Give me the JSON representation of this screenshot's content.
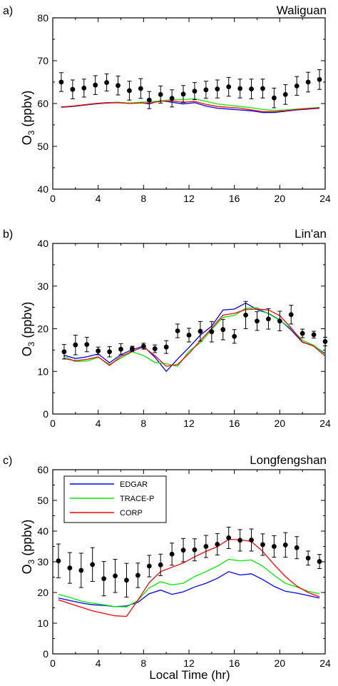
{
  "figure": {
    "xlabel": "Local Time (hr)",
    "legend_entries": [
      {
        "name": "EDGAR",
        "color": "#0000ff"
      },
      {
        "name": "TRACE-P",
        "color": "#00ee00"
      },
      {
        "name": "CORP",
        "color": "#ff0000"
      }
    ]
  },
  "chart_data": [
    {
      "type": "line",
      "panel_label": "a)",
      "title": "Waliguan",
      "ylabel": "O3 (ppbv)",
      "xlim": [
        0,
        24
      ],
      "ylim": [
        40,
        80
      ],
      "xticks": [
        0,
        4,
        8,
        12,
        16,
        20,
        24
      ],
      "yticks": [
        40,
        50,
        60,
        70,
        80
      ],
      "legend": "none",
      "observations": {
        "x": [
          0.75,
          1.75,
          2.75,
          3.75,
          4.75,
          5.75,
          6.75,
          7.75,
          8.5,
          9.5,
          10.5,
          11.5,
          12.5,
          13.5,
          14.5,
          15.5,
          16.5,
          17.5,
          18.5,
          19.5,
          20.5,
          21.5,
          22.5,
          23.5
        ],
        "y": [
          65.0,
          63.3,
          63.6,
          64.3,
          64.9,
          64.2,
          63.0,
          63.5,
          60.8,
          62.1,
          61.2,
          62.2,
          62.9,
          63.2,
          63.4,
          63.9,
          63.5,
          63.4,
          63.5,
          61.3,
          62.1,
          64.1,
          65.0,
          65.6
        ],
        "err": [
          2.2,
          2.2,
          2.1,
          2.2,
          2.0,
          2.2,
          2.2,
          2.3,
          2.0,
          2.0,
          2.0,
          2.0,
          2.0,
          2.0,
          2.1,
          2.2,
          2.2,
          2.3,
          2.2,
          2.3,
          2.3,
          2.2,
          2.3,
          2.3
        ]
      },
      "series": [
        {
          "name": "EDGAR",
          "color": "#0000ff",
          "x": [
            0.75,
            1.75,
            2.75,
            3.75,
            4.75,
            5.75,
            6.75,
            7.75,
            8.5,
            9.5,
            10.5,
            11.5,
            12.5,
            13.5,
            14.5,
            15.5,
            16.5,
            17.5,
            18.5,
            19.5,
            20.5,
            21.5,
            22.5,
            23.5
          ],
          "y": [
            59.1,
            59.3,
            59.6,
            59.9,
            60.1,
            60.2,
            60.1,
            60.2,
            59.9,
            60.7,
            60.3,
            59.9,
            60.2,
            59.4,
            58.9,
            58.7,
            58.5,
            58.3,
            57.9,
            57.9,
            58.2,
            58.5,
            58.7,
            58.9
          ]
        },
        {
          "name": "TRACE-P",
          "color": "#00ee00",
          "x": [
            0.75,
            1.75,
            2.75,
            3.75,
            4.75,
            5.75,
            6.75,
            7.75,
            8.5,
            9.5,
            10.5,
            11.5,
            12.5,
            13.5,
            14.5,
            15.5,
            16.5,
            17.5,
            18.5,
            19.5,
            20.5,
            21.5,
            22.5,
            23.5
          ],
          "y": [
            59.2,
            59.4,
            59.7,
            60.0,
            60.2,
            60.3,
            60.1,
            60.3,
            60.4,
            60.6,
            60.9,
            60.9,
            61.1,
            60.5,
            59.9,
            59.6,
            59.3,
            59.0,
            58.6,
            58.4,
            58.5,
            58.7,
            58.9,
            59.1
          ]
        },
        {
          "name": "CORP",
          "color": "#ff0000",
          "x": [
            0.75,
            1.75,
            2.75,
            3.75,
            4.75,
            5.75,
            6.75,
            7.75,
            8.5,
            9.5,
            10.5,
            11.5,
            12.5,
            13.5,
            14.5,
            15.5,
            16.5,
            17.5,
            18.5,
            19.5,
            20.5,
            21.5,
            22.5,
            23.5
          ],
          "y": [
            59.2,
            59.4,
            59.7,
            60.0,
            60.2,
            60.2,
            60.0,
            60.1,
            60.1,
            60.5,
            60.6,
            60.3,
            60.5,
            59.8,
            59.3,
            59.1,
            58.9,
            58.5,
            58.1,
            58.1,
            58.3,
            58.6,
            58.8,
            59.0
          ]
        }
      ]
    },
    {
      "type": "line",
      "panel_label": "b)",
      "title": "Lin'an",
      "ylabel": "O3 (ppbv)",
      "xlim": [
        0,
        24
      ],
      "ylim": [
        0,
        40
      ],
      "xticks": [
        0,
        4,
        8,
        12,
        16,
        20,
        24
      ],
      "yticks": [
        0,
        10,
        20,
        30,
        40
      ],
      "legend": "none",
      "observations": {
        "x": [
          1,
          2,
          3,
          4,
          5,
          6,
          7,
          8,
          9,
          10,
          11,
          12,
          13,
          14,
          15,
          16,
          17,
          18,
          19,
          20,
          21,
          22,
          23,
          24
        ],
        "y": [
          14.6,
          16.2,
          16.3,
          14.8,
          14.6,
          15.2,
          15.3,
          15.9,
          15.3,
          15.7,
          19.5,
          18.5,
          19.4,
          19.3,
          19.8,
          18.2,
          23.2,
          21.8,
          22.3,
          21.8,
          23.3,
          18.9,
          18.6,
          17.0
        ],
        "err": [
          1.7,
          2.3,
          1.7,
          0.9,
          1.2,
          1.3,
          0.6,
          0.7,
          0.9,
          1.5,
          1.6,
          1.6,
          2.3,
          2.4,
          2.4,
          1.6,
          3.2,
          2.2,
          2.4,
          2.3,
          2.2,
          1.0,
          0.8,
          1.0
        ]
      },
      "series": [
        {
          "name": "EDGAR",
          "color": "#0000ff",
          "x": [
            1,
            2,
            3,
            4,
            5,
            6,
            7,
            8,
            9,
            10,
            11,
            12,
            13,
            14,
            15,
            16,
            17,
            18,
            19,
            20,
            21,
            22,
            23,
            24
          ],
          "y": [
            13.8,
            13.0,
            13.4,
            14.1,
            12.0,
            13.9,
            15.1,
            15.9,
            13.3,
            10.0,
            12.9,
            15.6,
            18.5,
            20.6,
            24.4,
            24.6,
            26.0,
            24.5,
            23.6,
            22.1,
            19.7,
            16.8,
            16.0,
            14.2
          ]
        },
        {
          "name": "TRACE-P",
          "color": "#00ee00",
          "x": [
            1,
            2,
            3,
            4,
            5,
            6,
            7,
            8,
            9,
            10,
            11,
            12,
            13,
            14,
            15,
            16,
            17,
            18,
            19,
            20,
            21,
            22,
            23,
            24
          ],
          "y": [
            13.5,
            12.3,
            12.4,
            13.3,
            11.6,
            13.1,
            14.6,
            13.7,
            12.1,
            11.8,
            11.2,
            14.7,
            16.7,
            19.8,
            22.7,
            23.1,
            24.8,
            24.9,
            23.5,
            22.0,
            20.0,
            17.3,
            16.1,
            14.0
          ]
        },
        {
          "name": "CORP",
          "color": "#ff0000",
          "x": [
            1,
            2,
            3,
            4,
            5,
            6,
            7,
            8,
            9,
            10,
            11,
            12,
            13,
            14,
            15,
            16,
            17,
            18,
            19,
            20,
            21,
            22,
            23,
            24
          ],
          "y": [
            13.0,
            12.5,
            12.8,
            13.4,
            11.4,
            13.5,
            14.7,
            15.7,
            13.7,
            11.2,
            11.6,
            14.2,
            17.2,
            20.1,
            23.2,
            23.6,
            24.5,
            24.6,
            24.4,
            23.1,
            20.2,
            16.9,
            15.9,
            13.6
          ]
        }
      ]
    },
    {
      "type": "line",
      "panel_label": "c)",
      "title": "Longfengshan",
      "ylabel": "O3 (ppbv)",
      "xlim": [
        0,
        24
      ],
      "ylim": [
        0,
        60
      ],
      "xticks": [
        0,
        4,
        8,
        12,
        16,
        20,
        24
      ],
      "yticks": [
        0,
        10,
        20,
        30,
        40,
        50,
        60
      ],
      "legend": "top-left",
      "observations": {
        "x": [
          0.5,
          1.5,
          2.5,
          3.5,
          4.5,
          5.5,
          6.5,
          7.5,
          8.5,
          9.5,
          10.5,
          11.5,
          12.5,
          13.5,
          14.5,
          15.5,
          16.5,
          17.5,
          18.5,
          19.5,
          20.5,
          21.5,
          22.5,
          23.5
        ],
        "y": [
          30.3,
          28.0,
          27.2,
          29.1,
          24.5,
          25.4,
          24.0,
          25.6,
          28.6,
          29.0,
          32.5,
          33.8,
          33.9,
          35.0,
          35.7,
          37.8,
          37.0,
          37.1,
          35.6,
          35.0,
          35.5,
          34.6,
          31.2,
          30.1
        ],
        "err": [
          5.5,
          5.0,
          5.6,
          5.5,
          5.6,
          5.4,
          5.5,
          4.0,
          3.5,
          3.5,
          3.6,
          3.8,
          3.6,
          3.6,
          3.5,
          3.5,
          3.5,
          3.6,
          3.5,
          3.5,
          4.0,
          3.6,
          2.3,
          2.3
        ]
      },
      "series": [
        {
          "name": "EDGAR",
          "color": "#0000ff",
          "x": [
            0.5,
            1.5,
            2.5,
            3.5,
            4.5,
            5.5,
            6.5,
            7.5,
            8.5,
            9.5,
            10.5,
            11.5,
            12.5,
            13.5,
            14.5,
            15.5,
            16.5,
            17.5,
            18.5,
            19.5,
            20.5,
            21.5,
            22.5,
            23.5
          ],
          "y": [
            18.2,
            17.4,
            16.6,
            16.0,
            15.8,
            15.4,
            15.6,
            16.8,
            19.6,
            20.8,
            19.4,
            20.2,
            21.8,
            23.0,
            24.6,
            26.8,
            25.7,
            26.1,
            24.2,
            22.0,
            20.4,
            19.8,
            19.0,
            18.2
          ]
        },
        {
          "name": "TRACE-P",
          "color": "#00ee00",
          "x": [
            0.5,
            1.5,
            2.5,
            3.5,
            4.5,
            5.5,
            6.5,
            7.5,
            8.5,
            9.5,
            10.5,
            11.5,
            12.5,
            13.5,
            14.5,
            15.5,
            16.5,
            17.5,
            18.5,
            19.5,
            20.5,
            21.5,
            22.5,
            23.5
          ],
          "y": [
            19.4,
            18.4,
            17.2,
            16.5,
            16.0,
            15.4,
            15.3,
            17.4,
            21.5,
            23.5,
            22.5,
            23.0,
            25.2,
            26.8,
            28.6,
            30.8,
            30.3,
            30.6,
            28.6,
            25.6,
            23.0,
            21.8,
            20.4,
            19.6
          ]
        },
        {
          "name": "CORP",
          "color": "#ff0000",
          "x": [
            0.5,
            1.5,
            2.5,
            3.5,
            4.5,
            5.5,
            6.5,
            7.5,
            8.5,
            9.5,
            10.5,
            11.5,
            12.5,
            13.5,
            14.5,
            15.5,
            16.5,
            17.5,
            18.5,
            19.5,
            20.5,
            21.5,
            22.5,
            23.5
          ],
          "y": [
            17.6,
            16.4,
            15.2,
            14.0,
            13.2,
            12.4,
            12.2,
            17.5,
            23.2,
            26.8,
            28.2,
            29.6,
            31.6,
            33.4,
            34.9,
            37.3,
            37.2,
            36.6,
            33.4,
            29.1,
            25.2,
            22.1,
            20.0,
            18.6
          ]
        }
      ]
    }
  ]
}
